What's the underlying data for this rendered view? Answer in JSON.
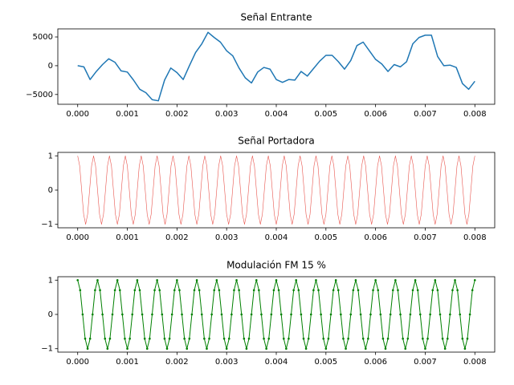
{
  "chart_data": [
    {
      "type": "line",
      "title": "Señal Entrante",
      "color": "#1f77b4",
      "linewidth": 1.5,
      "markers": false,
      "xlim": [
        -0.0004,
        0.0084
      ],
      "ylim": [
        -6700,
        6400
      ],
      "xticks": [
        {
          "value": 0,
          "label": "0.000"
        },
        0.001,
        0.002,
        0.003,
        0.004,
        0.005,
        0.006,
        0.007,
        0.008
      ],
      "yticks": [
        {
          "value": -5000,
          "label": "−5000"
        },
        0,
        5000
      ],
      "x": [
        0,
        0.000125,
        0.00025,
        0.000375,
        0.0005,
        0.000625,
        0.00075,
        0.000875,
        0.001,
        0.001125,
        0.00125,
        0.001375,
        0.0015,
        0.001625,
        0.00175,
        0.001875,
        0.002,
        0.002125,
        0.00225,
        0.002375,
        0.0025,
        0.002625,
        0.00275,
        0.002875,
        0.003,
        0.003125,
        0.00325,
        0.003375,
        0.0035,
        0.003625,
        0.00375,
        0.003875,
        0.004,
        0.004125,
        0.00425,
        0.004375,
        0.0045,
        0.004625,
        0.00475,
        0.004875,
        0.005,
        0.005125,
        0.00525,
        0.005375,
        0.0055,
        0.005625,
        0.00575,
        0.005875,
        0.006,
        0.006125,
        0.00625,
        0.006375,
        0.0065,
        0.006625,
        0.00675,
        0.006875,
        0.007,
        0.007125,
        0.00725,
        0.007375,
        0.0075,
        0.007625,
        0.00775,
        0.007875,
        0.008
      ],
      "values": [
        0,
        -200,
        -2400,
        -1000,
        200,
        1200,
        600,
        -900,
        -1100,
        -2500,
        -4100,
        -4700,
        -5900,
        -6100,
        -2500,
        -400,
        -1200,
        -2400,
        0,
        2300,
        3800,
        5800,
        4900,
        4100,
        2600,
        1700,
        -400,
        -2100,
        -3000,
        -1100,
        -300,
        -600,
        -2400,
        -2900,
        -2400,
        -2500,
        -1000,
        -1800,
        -500,
        800,
        1800,
        1800,
        700,
        -600,
        900,
        3500,
        4100,
        2600,
        1100,
        300,
        -1000,
        200,
        -200,
        700,
        3800,
        4900,
        5300,
        5300,
        1600,
        0,
        100,
        -300,
        -3100,
        -4100,
        -2700
      ]
    },
    {
      "type": "line",
      "title": "Señal Portadora",
      "color": "#e8554e",
      "linewidth": 0.6,
      "markers": false,
      "xlim": [
        -0.0004,
        0.0084
      ],
      "ylim": [
        -1.1,
        1.1
      ],
      "xticks": [
        {
          "value": 0,
          "label": "0.000"
        },
        0.001,
        0.002,
        0.003,
        0.004,
        0.005,
        0.006,
        0.007,
        0.008
      ],
      "yticks": [
        {
          "value": -1,
          "label": "−1"
        },
        0,
        1
      ],
      "x": [
        0,
        4e-05,
        8e-05,
        0.00012,
        0.00016,
        0.0002,
        0.00024,
        0.00028,
        0.00032,
        0.00036,
        0.0004,
        0.00044,
        0.00048,
        0.00052,
        0.00056,
        0.0006,
        0.00064,
        0.00068,
        0.00072,
        0.00076,
        0.0008,
        0.00084,
        0.00088,
        0.00092,
        0.00096,
        0.001,
        0.00104,
        0.00108,
        0.00112,
        0.00116,
        0.0012,
        0.00124,
        0.00128,
        0.00132,
        0.00136,
        0.0014,
        0.00144,
        0.00148,
        0.00152,
        0.00156,
        0.0016,
        0.00164,
        0.00168,
        0.00172,
        0.00176,
        0.0018,
        0.00184,
        0.00188,
        0.00192,
        0.00196,
        0.002,
        0.00204,
        0.00208,
        0.00212,
        0.00216,
        0.0022,
        0.00224,
        0.00228,
        0.00232,
        0.00236,
        0.0024,
        0.00244,
        0.00248,
        0.00252,
        0.00256,
        0.0026,
        0.00264,
        0.00268,
        0.00272,
        0.00276,
        0.0028,
        0.00284,
        0.00288,
        0.00292,
        0.00296,
        0.003,
        0.00304,
        0.00308,
        0.00312,
        0.00316,
        0.0032,
        0.00324,
        0.00328,
        0.00332,
        0.00336,
        0.0034,
        0.00344,
        0.00348,
        0.00352,
        0.00356,
        0.0036,
        0.00364,
        0.00368,
        0.00372,
        0.00376,
        0.0038,
        0.00384,
        0.00388,
        0.00392,
        0.00396,
        0.004,
        0.00404,
        0.00408,
        0.00412,
        0.00416,
        0.0042,
        0.00424,
        0.00428,
        0.00432,
        0.00436,
        0.0044,
        0.00444,
        0.00448,
        0.00452,
        0.00456,
        0.0046,
        0.00464,
        0.00468,
        0.00472,
        0.00476,
        0.0048,
        0.00484,
        0.00488,
        0.00492,
        0.00496,
        0.005,
        0.00504,
        0.00508,
        0.00512,
        0.00516,
        0.0052,
        0.00524,
        0.00528,
        0.00532,
        0.00536,
        0.0054,
        0.00544,
        0.00548,
        0.00552,
        0.00556,
        0.0056,
        0.00564,
        0.00568,
        0.00572,
        0.00576,
        0.0058,
        0.00584,
        0.00588,
        0.00592,
        0.00596,
        0.006,
        0.00604,
        0.00608,
        0.00612,
        0.00616,
        0.0062,
        0.00624,
        0.00628,
        0.00632,
        0.00636,
        0.0064,
        0.00644,
        0.00648,
        0.00652,
        0.00656,
        0.0066,
        0.00664,
        0.00668,
        0.00672,
        0.00676,
        0.0068,
        0.00684,
        0.00688,
        0.00692,
        0.00696,
        0.007,
        0.00704,
        0.00708,
        0.00712,
        0.00716,
        0.0072,
        0.00724,
        0.00728,
        0.00732,
        0.00736,
        0.0074,
        0.00744,
        0.00748,
        0.00752,
        0.00756,
        0.0076,
        0.00764,
        0.00768,
        0.00772,
        0.00776,
        0.0078,
        0.00784,
        0.00788,
        0.00792,
        0.00796,
        0.008
      ],
      "values": [
        1,
        0.707,
        0,
        -0.707,
        -1,
        -0.707,
        0,
        0.707,
        1,
        0.707,
        0,
        -0.707,
        -1,
        -0.707,
        0,
        0.707,
        1,
        0.707,
        0,
        -0.707,
        -1,
        -0.707,
        0,
        0.707,
        1,
        0.707,
        0,
        -0.707,
        -1,
        -0.707,
        0,
        0.707,
        1,
        0.707,
        0,
        -0.707,
        -1,
        -0.707,
        0,
        0.707,
        1,
        0.707,
        0,
        -0.707,
        -1,
        -0.707,
        0,
        0.707,
        1,
        0.707,
        0,
        -0.707,
        -1,
        -0.707,
        0,
        0.707,
        1,
        0.707,
        0,
        -0.707,
        -1,
        -0.707,
        0,
        0.707,
        1,
        0.707,
        0,
        -0.707,
        -1,
        -0.707,
        0,
        0.707,
        1,
        0.707,
        0,
        -0.707,
        -1,
        -0.707,
        0,
        0.707,
        1,
        0.707,
        0,
        -0.707,
        -1,
        -0.707,
        0,
        0.707,
        1,
        0.707,
        0,
        -0.707,
        -1,
        -0.707,
        0,
        0.707,
        1,
        0.707,
        0,
        -0.707,
        -1,
        -0.707,
        0,
        0.707,
        1,
        0.707,
        0,
        -0.707,
        -1,
        -0.707,
        0,
        0.707,
        1,
        0.707,
        0,
        -0.707,
        -1,
        -0.707,
        0,
        0.707,
        1,
        0.707,
        0,
        -0.707,
        -1,
        -0.707,
        0,
        0.707,
        1,
        0.707,
        0,
        -0.707,
        -1,
        -0.707,
        0,
        0.707,
        1,
        0.707,
        0,
        -0.707,
        -1,
        -0.707,
        0,
        0.707,
        1,
        0.707,
        0,
        -0.707,
        -1,
        -0.707,
        0,
        0.707,
        1,
        0.707,
        0,
        -0.707,
        -1,
        -0.707,
        0,
        0.707,
        1,
        0.707,
        0,
        -0.707,
        -1,
        -0.707,
        0,
        0.707,
        1,
        0.707,
        0,
        -0.707,
        -1,
        -0.707,
        0,
        0.707,
        1,
        0.707,
        0,
        -0.707,
        -1,
        -0.707,
        0,
        0.707,
        1,
        0.707,
        0,
        -0.707,
        -1,
        -0.707,
        0,
        0.707,
        1,
        0.707,
        0,
        -0.707,
        -1,
        -0.707,
        0,
        0.707,
        1
      ]
    },
    {
      "type": "line",
      "title": "Modulación FM 15 %",
      "color": "#008000",
      "linewidth": 1,
      "markers": true,
      "xlim": [
        -0.0004,
        0.0084
      ],
      "ylim": [
        -1.1,
        1.1
      ],
      "xticks": [
        {
          "value": 0,
          "label": "0.000"
        },
        0.001,
        0.002,
        0.003,
        0.004,
        0.005,
        0.006,
        0.007,
        0.008
      ],
      "yticks": [
        {
          "value": -1,
          "label": "−1"
        },
        0,
        1
      ],
      "x": [
        0,
        5e-05,
        0.0001,
        0.00015,
        0.0002,
        0.00025,
        0.0003,
        0.00035,
        0.0004,
        0.00045,
        0.0005,
        0.00055,
        0.0006,
        0.00065,
        0.0007,
        0.00075,
        0.0008,
        0.00085,
        0.0009,
        0.00095,
        0.001,
        0.00105,
        0.0011,
        0.00115,
        0.0012,
        0.00125,
        0.0013,
        0.00135,
        0.0014,
        0.00145,
        0.0015,
        0.00155,
        0.0016,
        0.00165,
        0.0017,
        0.00175,
        0.0018,
        0.00185,
        0.0019,
        0.00195,
        0.002,
        0.00205,
        0.0021,
        0.00215,
        0.0022,
        0.00225,
        0.0023,
        0.00235,
        0.0024,
        0.00245,
        0.0025,
        0.00255,
        0.0026,
        0.00265,
        0.0027,
        0.00275,
        0.0028,
        0.00285,
        0.0029,
        0.00295,
        0.003,
        0.00305,
        0.0031,
        0.00315,
        0.0032,
        0.00325,
        0.0033,
        0.00335,
        0.0034,
        0.00345,
        0.0035,
        0.00355,
        0.0036,
        0.00365,
        0.0037,
        0.00375,
        0.0038,
        0.00385,
        0.0039,
        0.00395,
        0.004,
        0.00405,
        0.0041,
        0.00415,
        0.0042,
        0.00425,
        0.0043,
        0.00435,
        0.0044,
        0.00445,
        0.0045,
        0.00455,
        0.0046,
        0.00465,
        0.0047,
        0.00475,
        0.0048,
        0.00485,
        0.0049,
        0.00495,
        0.005,
        0.00505,
        0.0051,
        0.00515,
        0.0052,
        0.00525,
        0.0053,
        0.00535,
        0.0054,
        0.00545,
        0.0055,
        0.00555,
        0.0056,
        0.00565,
        0.0057,
        0.00575,
        0.0058,
        0.00585,
        0.0059,
        0.00595,
        0.006,
        0.00605,
        0.0061,
        0.00615,
        0.0062,
        0.00625,
        0.0063,
        0.00635,
        0.0064,
        0.00645,
        0.0065,
        0.00655,
        0.0066,
        0.00665,
        0.0067,
        0.00675,
        0.0068,
        0.00685,
        0.0069,
        0.00695,
        0.007,
        0.00705,
        0.0071,
        0.00715,
        0.0072,
        0.00725,
        0.0073,
        0.00735,
        0.0074,
        0.00745,
        0.0075,
        0.00755,
        0.0076,
        0.00765,
        0.0077,
        0.00775,
        0.0078,
        0.00785,
        0.0079,
        0.00795,
        0.008
      ],
      "values": [
        1,
        0.707,
        0,
        -0.707,
        -1,
        -0.707,
        0,
        0.707,
        1,
        0.707,
        0,
        -0.707,
        -1,
        -0.707,
        0,
        0.707,
        1,
        0.707,
        0,
        -0.707,
        -1,
        -0.707,
        0,
        0.707,
        1,
        0.707,
        0,
        -0.707,
        -1,
        -0.707,
        0,
        0.707,
        1,
        0.707,
        0,
        -0.707,
        -1,
        -0.707,
        0,
        0.707,
        1,
        0.707,
        0,
        -0.707,
        -1,
        -0.707,
        0,
        0.707,
        1,
        0.707,
        0,
        -0.707,
        -1,
        -0.707,
        0,
        0.707,
        1,
        0.707,
        0,
        -0.707,
        -1,
        -0.707,
        0,
        0.707,
        1,
        0.707,
        0,
        -0.707,
        -1,
        -0.707,
        0,
        0.707,
        1,
        0.707,
        0,
        -0.707,
        -1,
        -0.707,
        0,
        0.707,
        1,
        0.707,
        0,
        -0.707,
        -1,
        -0.707,
        0,
        0.707,
        1,
        0.707,
        0,
        -0.707,
        -1,
        -0.707,
        0,
        0.707,
        1,
        0.707,
        0,
        -0.707,
        -1,
        -0.707,
        0,
        0.707,
        1,
        0.707,
        0,
        -0.707,
        -1,
        -0.707,
        0,
        0.707,
        1,
        0.707,
        0,
        -0.707,
        -1,
        -0.707,
        0,
        0.707,
        1,
        0.707,
        0,
        -0.707,
        -1,
        -0.707,
        0,
        0.707,
        1,
        0.707,
        0,
        -0.707,
        -1,
        -0.707,
        0,
        0.707,
        1,
        0.707,
        0,
        -0.707,
        -1,
        -0.707,
        0,
        0.707,
        1,
        0.707,
        0,
        -0.707,
        -1,
        -0.707,
        0,
        0.707,
        1,
        0.707,
        0,
        -0.707,
        -1,
        -0.707,
        0,
        0.707,
        1
      ]
    }
  ]
}
